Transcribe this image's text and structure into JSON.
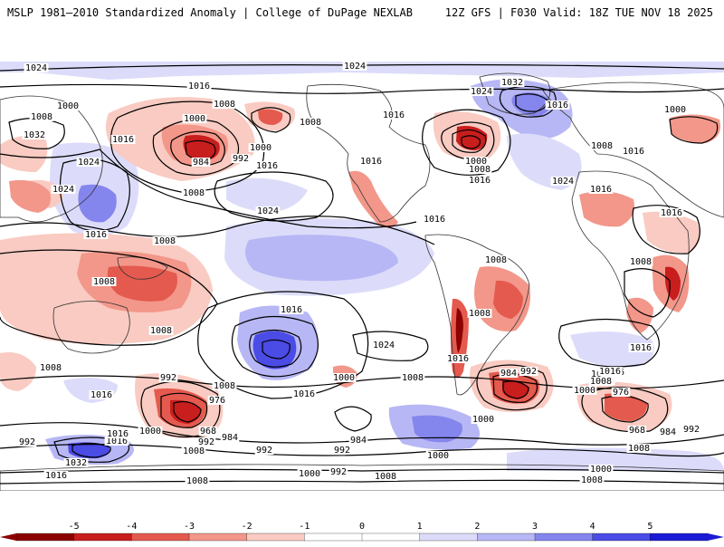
{
  "header": {
    "title": "MSLP 1981–2010 Standardized Anomaly | College of DuPage NEXLAB",
    "model_info": "12Z GFS | F030 Valid: 18Z TUE NOV 18 2025"
  },
  "colors": {
    "neg5": "#8b0000",
    "neg4": "#c81e1e",
    "neg3": "#e45a4e",
    "neg2": "#f2978a",
    "neg1": "#f9cbc2",
    "zero": "#ffffff",
    "pos1": "#dcdcfa",
    "pos2": "#b7b7f5",
    "pos3": "#8585ee",
    "pos4": "#4b4be6",
    "pos5": "#1a1ad6"
  },
  "colorbar": {
    "ticks": [
      "-5",
      "-4",
      "-3",
      "-2",
      "-1",
      "0",
      "1",
      "2",
      "3",
      "4",
      "5"
    ]
  },
  "isobars": [
    {
      "name": "iso-1024-north",
      "text": "1024"
    },
    {
      "name": "iso-1024-west",
      "text": "1024"
    },
    {
      "name": "iso-1016-nw",
      "text": "1016"
    },
    {
      "name": "iso-1008-nw",
      "text": "1008"
    },
    {
      "name": "iso-1000-aleutian",
      "text": "1000"
    },
    {
      "name": "iso-1000-aleutian-b",
      "text": "1000"
    },
    {
      "name": "iso-1008-aleutian",
      "text": "1008"
    },
    {
      "name": "iso-1032-asia",
      "text": "1032"
    },
    {
      "name": "iso-1016-asia",
      "text": "1016"
    },
    {
      "name": "iso-1024-asia",
      "text": "1024"
    },
    {
      "name": "iso-984-aleutian",
      "text": "984"
    },
    {
      "name": "iso-992-aleutian",
      "text": "992"
    },
    {
      "name": "iso-1000-aleutian-c",
      "text": "1000"
    },
    {
      "name": "iso-1016-pac",
      "text": "1016"
    },
    {
      "name": "iso-1008-pac",
      "text": "1008"
    },
    {
      "name": "iso-1024-pac",
      "text": "1024"
    },
    {
      "name": "iso-1008-bering",
      "text": "1008"
    },
    {
      "name": "iso-1016-na",
      "text": "1016"
    },
    {
      "name": "iso-1024-greenland",
      "text": "1024"
    },
    {
      "name": "iso-1032-greenland",
      "text": "1032"
    },
    {
      "name": "iso-1016-atl",
      "text": "1016"
    },
    {
      "name": "iso-1000-atl",
      "text": "1000"
    },
    {
      "name": "iso-1008-atl",
      "text": "1008"
    },
    {
      "name": "iso-1016-atl-b",
      "text": "1016"
    },
    {
      "name": "iso-1024-atl",
      "text": "1024"
    },
    {
      "name": "iso-1000-europe",
      "text": "1000"
    },
    {
      "name": "iso-1008-europe",
      "text": "1008"
    },
    {
      "name": "iso-1016-europe",
      "text": "1016"
    },
    {
      "name": "iso-1016-sahara",
      "text": "1016"
    },
    {
      "name": "iso-1016-arabia",
      "text": "1016"
    },
    {
      "name": "iso-1016-mexico",
      "text": "1016"
    },
    {
      "name": "iso-1016-carib",
      "text": "1016"
    },
    {
      "name": "iso-1024-india",
      "text": "1024"
    },
    {
      "name": "iso-1016-india",
      "text": "1016"
    },
    {
      "name": "iso-1008-india",
      "text": "1008"
    },
    {
      "name": "iso-1008-wpac",
      "text": "1008"
    },
    {
      "name": "iso-1008-wpac-b",
      "text": "1008"
    },
    {
      "name": "iso-1008-wpac-c",
      "text": "1008"
    },
    {
      "name": "iso-1016-spac",
      "text": "1016"
    },
    {
      "name": "iso-1024-spac",
      "text": "1024"
    },
    {
      "name": "iso-1008-spac",
      "text": "1008"
    },
    {
      "name": "iso-1016-spac-b",
      "text": "1016"
    },
    {
      "name": "iso-1008-brazil",
      "text": "1008"
    },
    {
      "name": "iso-1008-amazon",
      "text": "1008"
    },
    {
      "name": "iso-1016-chile",
      "text": "1016"
    },
    {
      "name": "iso-1000-drake",
      "text": "1000"
    },
    {
      "name": "iso-1008-satl",
      "text": "1008"
    },
    {
      "name": "iso-1016-africa",
      "text": "1016"
    },
    {
      "name": "iso-1016-safrica",
      "text": "1016"
    },
    {
      "name": "iso-1008-safrica",
      "text": "1008"
    },
    {
      "name": "iso-1008-sio",
      "text": "1008"
    },
    {
      "name": "iso-1016-sio",
      "text": "1016"
    },
    {
      "name": "iso-1016-aus",
      "text": "1016"
    },
    {
      "name": "iso-1008-aus",
      "text": "1008"
    },
    {
      "name": "iso-992-tasman",
      "text": "992"
    },
    {
      "name": "iso-976-tasman",
      "text": "976"
    },
    {
      "name": "iso-1000-tasman",
      "text": "1000"
    },
    {
      "name": "iso-968-tasman",
      "text": "968"
    },
    {
      "name": "iso-984-tasman",
      "text": "984"
    },
    {
      "name": "iso-992-tasman-b",
      "text": "992"
    },
    {
      "name": "iso-1008-tasman",
      "text": "1008"
    },
    {
      "name": "iso-1016-nz",
      "text": "1016"
    },
    {
      "name": "iso-1032-sant",
      "text": "1032"
    },
    {
      "name": "iso-992-sant",
      "text": "992"
    },
    {
      "name": "iso-992-sant-b",
      "text": "992"
    },
    {
      "name": "iso-1016-sant-c",
      "text": "1016"
    },
    {
      "name": "iso-1008-sant",
      "text": "1008"
    },
    {
      "name": "iso-1000-spac-low",
      "text": "1000"
    },
    {
      "name": "iso-984-spac",
      "text": "984"
    },
    {
      "name": "iso-992-spac",
      "text": "992"
    },
    {
      "name": "iso-1000-ant",
      "text": "1000"
    },
    {
      "name": "iso-992-ant",
      "text": "992"
    },
    {
      "name": "iso-1008-ant",
      "text": "1008"
    },
    {
      "name": "iso-1000-drake-b",
      "text": "1000"
    },
    {
      "name": "iso-984-satl",
      "text": "984"
    },
    {
      "name": "iso-992-satl",
      "text": "992"
    },
    {
      "name": "iso-1016-satl",
      "text": "1016"
    },
    {
      "name": "iso-1008-satl-b",
      "text": "1008"
    },
    {
      "name": "iso-1000-satl",
      "text": "1000"
    },
    {
      "name": "iso-976-sio",
      "text": "976"
    },
    {
      "name": "iso-968-sio",
      "text": "968"
    },
    {
      "name": "iso-984-sio",
      "text": "984"
    },
    {
      "name": "iso-992-sio",
      "text": "992"
    },
    {
      "name": "iso-1008-sio-b",
      "text": "1008"
    },
    {
      "name": "iso-1000-sio",
      "text": "1000"
    },
    {
      "name": "iso-1008-sio-c",
      "text": "1008"
    }
  ]
}
